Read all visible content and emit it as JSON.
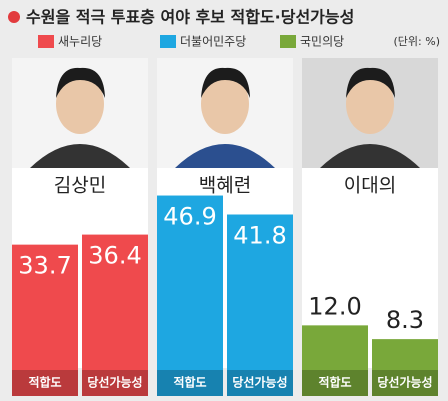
{
  "chart_data": {
    "type": "bar",
    "title": "수원을 적극 투표층 여야 후보 적합도·당선가능성",
    "unit": "(단위: %)",
    "series": [
      {
        "name": "새누리당",
        "candidate": "김상민",
        "color": "#ef4a4d",
        "categories": [
          "적합도",
          "당선가능성"
        ],
        "values": [
          33.7,
          36.4
        ],
        "value_labels": [
          "33.7",
          "36.4"
        ]
      },
      {
        "name": "더불어민주당",
        "candidate": "백혜련",
        "color": "#1ea7e1",
        "categories": [
          "적합도",
          "당선가능성"
        ],
        "values": [
          46.9,
          41.8
        ],
        "value_labels": [
          "46.9",
          "41.8"
        ]
      },
      {
        "name": "국민의당",
        "candidate": "이대의",
        "color": "#79a83a",
        "categories": [
          "적합도",
          "당선가능성"
        ],
        "values": [
          12.0,
          8.3
        ],
        "value_labels": [
          "12.0",
          "8.3"
        ]
      }
    ]
  }
}
